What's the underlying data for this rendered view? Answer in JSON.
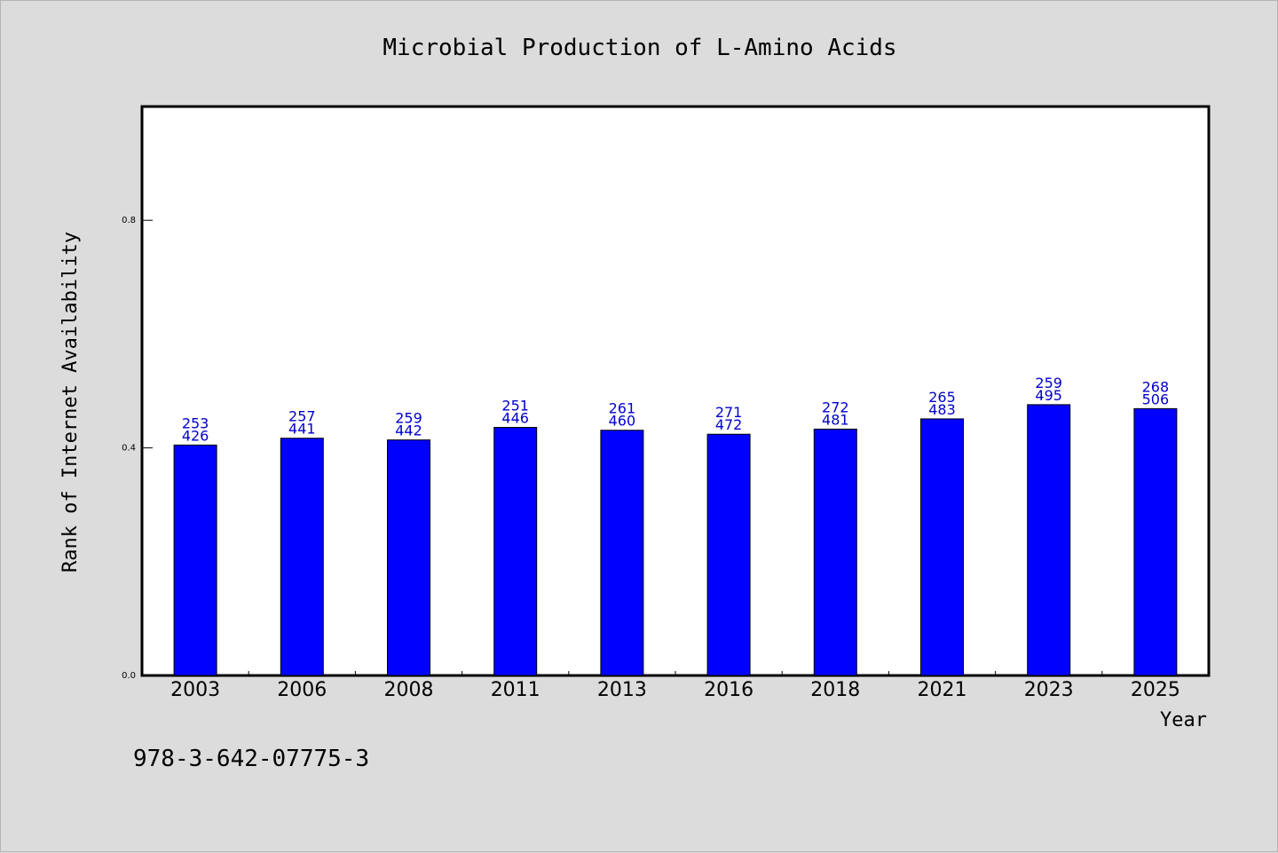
{
  "chart_data": {
    "type": "bar",
    "title": "Microbial Production of L-Amino Acids",
    "xlabel": "Year",
    "ylabel": "Rank of Internet Availability",
    "categories": [
      "2003",
      "2006",
      "2008",
      "2011",
      "2013",
      "2016",
      "2018",
      "2021",
      "2023",
      "2025"
    ],
    "values": [
      0.405,
      0.417,
      0.414,
      0.436,
      0.431,
      0.424,
      0.433,
      0.451,
      0.476,
      0.469
    ],
    "labels_top": [
      "253",
      "257",
      "259",
      "251",
      "261",
      "271",
      "272",
      "265",
      "259",
      "268"
    ],
    "labels_bottom": [
      "426",
      "441",
      "442",
      "446",
      "460",
      "472",
      "481",
      "483",
      "495",
      "506"
    ],
    "ylim": [
      0,
      1.0
    ],
    "yticks": [
      0.0,
      0.4,
      0.8
    ],
    "ytick_labels": [
      "0.0",
      "0.4",
      "0.8"
    ],
    "grid": false,
    "bar_color": "#0000ff",
    "label_color": "#0000cc"
  },
  "footer_text": "978-3-642-07775-3"
}
